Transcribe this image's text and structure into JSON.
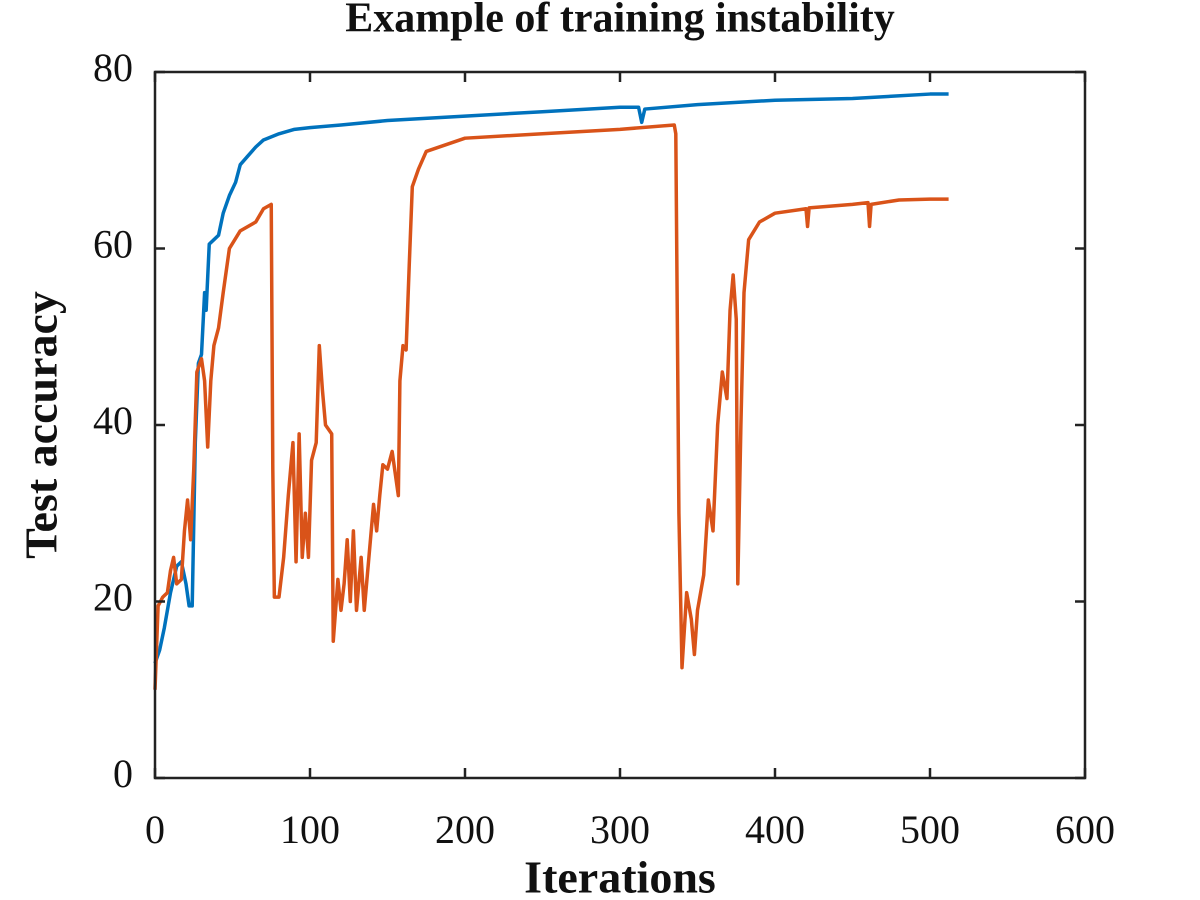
{
  "chart_data": {
    "type": "line",
    "title": "Example of training instability",
    "x_label": "Iterations",
    "y_label": "Test accuracy",
    "xlim": [
      0,
      600
    ],
    "xticks": [
      0,
      100,
      200,
      300,
      400,
      500,
      600
    ],
    "ylim": [
      0,
      80
    ],
    "yticks": [
      0,
      20,
      40,
      60,
      80
    ],
    "series": [
      {
        "color": "#0072bd",
        "x": [
          0,
          3,
          6,
          10,
          14,
          17,
          20,
          22,
          24,
          26,
          28,
          30,
          32,
          33,
          35,
          38,
          41,
          44,
          48,
          52,
          55,
          60,
          65,
          70,
          80,
          90,
          100,
          120,
          150,
          200,
          250,
          300,
          312,
          314,
          316,
          350,
          400,
          450,
          500,
          512
        ],
        "values": [
          13,
          14.5,
          17,
          21,
          24,
          24.5,
          22,
          19.5,
          19.5,
          38,
          47,
          48,
          55,
          53,
          60.5,
          61,
          61.5,
          64,
          66,
          67.5,
          69.5,
          70.5,
          71.5,
          72.3,
          73,
          73.5,
          73.7,
          74,
          74.5,
          75,
          75.5,
          76,
          76,
          74.3,
          75.8,
          76.3,
          76.8,
          77,
          77.5,
          77.5
        ]
      },
      {
        "color": "#d95319",
        "x": [
          0,
          2,
          5,
          8,
          10,
          12,
          14,
          17,
          19,
          21,
          23,
          25,
          27,
          30,
          32,
          34,
          36,
          38,
          41,
          44,
          48,
          55,
          65,
          70,
          75,
          76,
          77,
          80,
          83,
          86,
          89,
          91,
          93,
          95,
          97,
          99,
          101,
          104,
          106,
          108,
          110,
          114,
          115,
          118,
          120,
          122,
          124,
          126,
          128,
          130,
          133,
          135,
          138,
          141,
          143,
          145,
          147,
          150,
          153,
          157,
          158,
          160,
          162,
          164,
          166,
          170,
          175,
          200,
          250,
          300,
          335,
          336,
          338,
          340,
          343,
          346,
          348,
          350,
          354,
          357,
          360,
          363,
          366,
          369,
          371,
          373,
          375,
          376,
          378,
          380,
          383,
          390,
          400,
          420,
          421,
          422,
          450,
          460,
          461,
          462,
          480,
          500,
          512
        ],
        "values": [
          10,
          19.5,
          20.5,
          21,
          23.5,
          25,
          22,
          22.5,
          28,
          31.5,
          27,
          35,
          46,
          47.5,
          45,
          37.5,
          45,
          49,
          51,
          55,
          60,
          62,
          63,
          64.5,
          65,
          35,
          20.5,
          20.5,
          25,
          32,
          38,
          24.5,
          39,
          25,
          30,
          25,
          36,
          38,
          49,
          44,
          40,
          39,
          15.5,
          22.5,
          19,
          22,
          27,
          20,
          28,
          19,
          25,
          19,
          25,
          31,
          28,
          32,
          35.5,
          35,
          37,
          32,
          45,
          49,
          48.5,
          58,
          67,
          69,
          71,
          72.5,
          73,
          73.5,
          74,
          73,
          30,
          12.5,
          21,
          18,
          14,
          19,
          23,
          31.5,
          28,
          40,
          46,
          43,
          53,
          57,
          52,
          22,
          40,
          55,
          61,
          63,
          64,
          64.5,
          62.5,
          64.6,
          65,
          65.2,
          62.5,
          65,
          65.5,
          65.6,
          65.6
        ]
      }
    ]
  }
}
